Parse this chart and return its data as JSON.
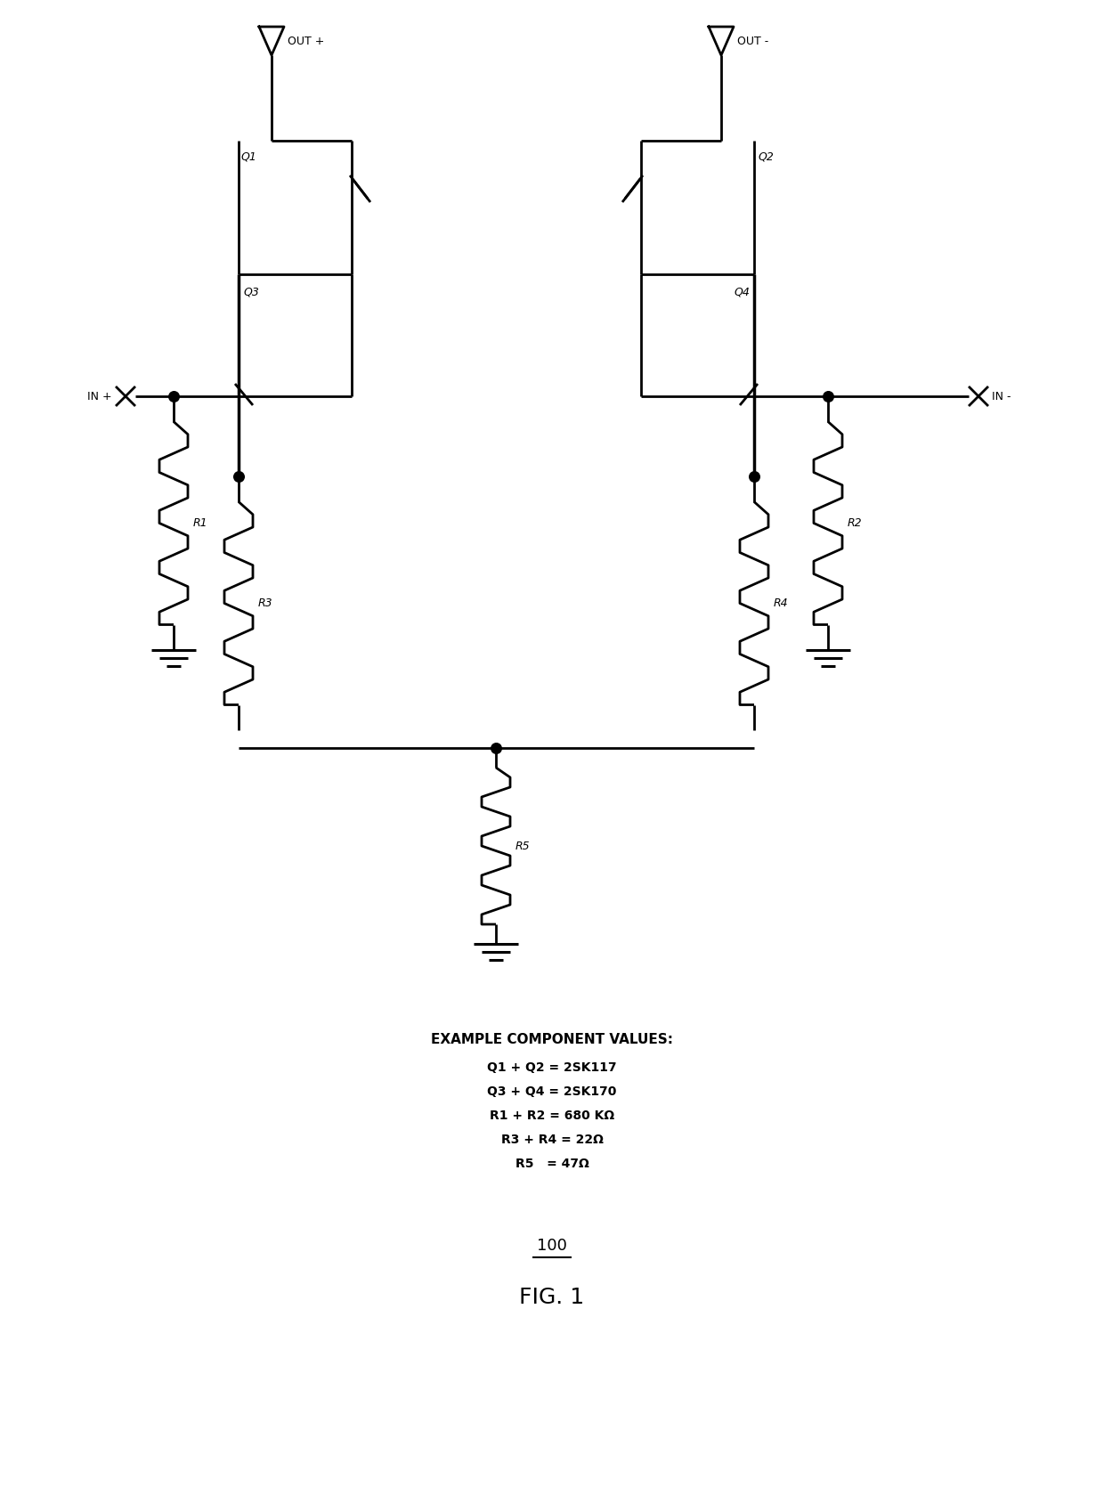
{
  "bg_color": "#ffffff",
  "line_color": "#000000",
  "line_width": 2.0,
  "title_100": "100",
  "title_fig": "FIG. 1",
  "component_values_title": "EXAMPLE COMPONENT VALUES:",
  "component_values": [
    "Q1 + Q2 = 2SK117",
    "Q3 + Q4 = 2SK170",
    "R1 + R2 = 680 KΩ",
    "R3 + R4 = 22Ω",
    "R5   = 47Ω"
  ],
  "labels": {
    "OUT_plus": "OUT +",
    "OUT_minus": "OUT -",
    "IN_plus": "IN +",
    "IN_minus": "IN -",
    "Q1": "Q1",
    "Q2": "Q2",
    "Q3": "Q3",
    "Q4": "Q4",
    "R1": "R1",
    "R2": "R2",
    "R3": "R3",
    "R4": "R4",
    "R5": "R5"
  }
}
